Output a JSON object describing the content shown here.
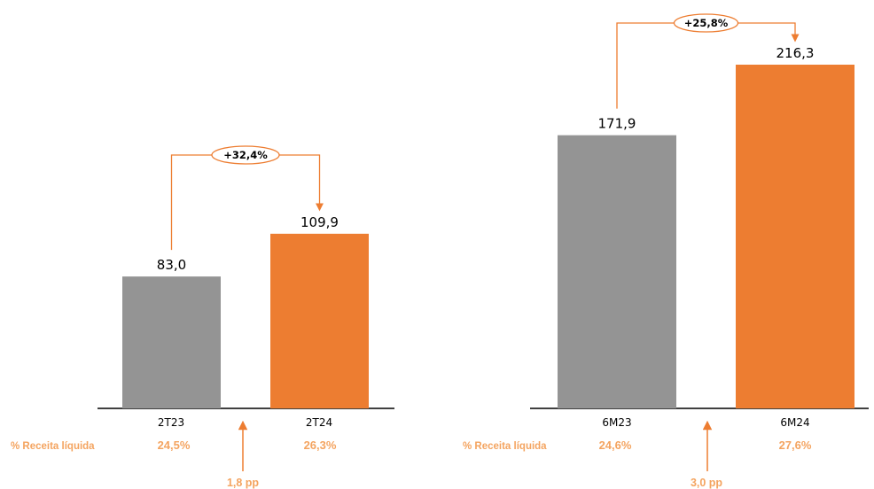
{
  "colors": {
    "previous": "#949494",
    "current": "#ED7D31",
    "accent": "#F4A460",
    "axis": "#000000",
    "text": "#000000"
  },
  "chart_data": [
    {
      "type": "bar",
      "categories": [
        "2T23",
        "2T24"
      ],
      "values": [
        83.0,
        109.9
      ],
      "value_labels": [
        "83,0",
        "109,9"
      ],
      "growth_label": "+32,4%",
      "margin_row_label": "% Receita líquida",
      "margins": [
        "24,5%",
        "26,3%"
      ],
      "margin_change": "1,8 pp",
      "ylim": [
        0,
        216.3
      ],
      "grid": false,
      "title": "",
      "xlabel": "",
      "ylabel": ""
    },
    {
      "type": "bar",
      "categories": [
        "6M23",
        "6M24"
      ],
      "values": [
        171.9,
        216.3
      ],
      "value_labels": [
        "171,9",
        "216,3"
      ],
      "growth_label": "+25,8%",
      "margin_row_label": "% Receita líquida",
      "margins": [
        "24,6%",
        "27,6%"
      ],
      "margin_change": "3,0 pp",
      "ylim": [
        0,
        216.3
      ],
      "grid": false,
      "title": "",
      "xlabel": "",
      "ylabel": ""
    }
  ]
}
